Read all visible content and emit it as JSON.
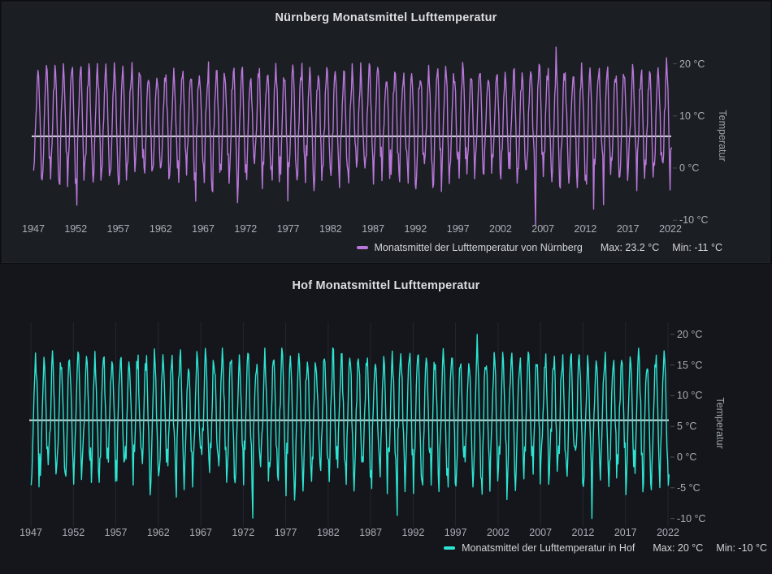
{
  "chart_data": [
    {
      "type": "line",
      "title": "Nürnberg Monatsmittel Lufttemperatur",
      "ylabel": "Temperatur",
      "xlabel": "",
      "sampling": "monthly",
      "x_ticks": [
        1947,
        1952,
        1957,
        1962,
        1967,
        1972,
        1977,
        1982,
        1987,
        1992,
        1997,
        2002,
        2007,
        2012,
        2017,
        2022
      ],
      "x_range": [
        1947,
        2022.2
      ],
      "y_ticks": [
        20,
        10,
        0,
        -10
      ],
      "y_tick_suffix": " °C",
      "y_range": [
        -11,
        23.2
      ],
      "grid": {
        "vertical": false,
        "horizontal": false
      },
      "legend_position": "bottom-right",
      "mean_line": 6.1,
      "mean_line_color": "#d9dadd",
      "series": [
        {
          "name": "Monatsmittel der Lufttemperatur von Nürnberg",
          "color": "#b877d9",
          "max": 23.2,
          "min": -11,
          "monthly_climatology": [
            -0.5,
            0.5,
            4.5,
            9.0,
            13.5,
            16.5,
            18.3,
            17.8,
            13.8,
            8.8,
            3.8,
            0.5
          ],
          "monthly_variability": [
            4.0,
            4.0,
            2.5,
            2.0,
            2.0,
            1.8,
            2.0,
            1.8,
            1.8,
            2.0,
            2.2,
            3.5
          ]
        }
      ],
      "legend": {
        "label": "Monatsmittel der Lufttemperatur von Nürnberg",
        "max": "Max: 23.2 °C",
        "min": "Min: -11 °C"
      }
    },
    {
      "type": "line",
      "title": "Hof Monatsmittel Lufttemperatur",
      "ylabel": "Temperatur",
      "xlabel": "",
      "sampling": "monthly",
      "x_ticks": [
        1947,
        1952,
        1957,
        1962,
        1967,
        1972,
        1977,
        1982,
        1987,
        1992,
        1997,
        2002,
        2007,
        2012,
        2017,
        2022
      ],
      "x_range": [
        1947,
        2022.2
      ],
      "y_ticks": [
        20,
        15,
        10,
        5,
        0,
        -5,
        -10
      ],
      "y_tick_suffix": " °C",
      "y_range": [
        -10,
        20
      ],
      "grid": {
        "vertical": true,
        "horizontal": false
      },
      "legend_position": "bottom-right",
      "mean_line": 6.0,
      "mean_line_color": "#d9dadd",
      "series": [
        {
          "name": "Monatsmittel der Lufttemperatur in Hof",
          "color": "#2ce5d2",
          "max": 20,
          "min": -10,
          "monthly_climatology": [
            -2.2,
            -1.2,
            2.2,
            6.2,
            10.8,
            14.0,
            15.8,
            15.3,
            11.8,
            7.2,
            2.2,
            -1.0
          ],
          "monthly_variability": [
            4.0,
            4.0,
            2.6,
            2.0,
            2.0,
            1.8,
            2.0,
            1.8,
            1.8,
            2.0,
            2.2,
            3.5
          ]
        }
      ],
      "legend": {
        "label": "Monatsmittel der Lufttemperatur in Hof",
        "max": "Max: 20 °C",
        "min": "Min: -10 °C"
      }
    }
  ]
}
